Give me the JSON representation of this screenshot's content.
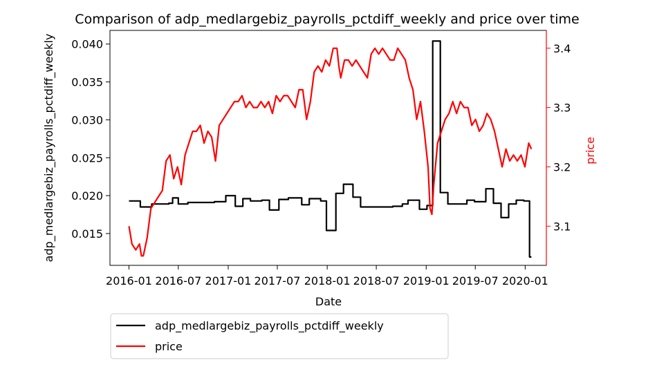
{
  "chart_data": {
    "type": "line",
    "title": "Comparison of adp_medlargebiz_payrolls_pctdiff_weekly and price over time",
    "xlabel": "Date",
    "ylabel_left": "adp_medlargebiz_payrolls_pctdiff_weekly",
    "ylabel_right": "price",
    "x_ticks": [
      "2016-01",
      "2016-07",
      "2017-01",
      "2017-07",
      "2018-01",
      "2018-07",
      "2019-01",
      "2019-07",
      "2020-01"
    ],
    "y_left_ticks": [
      "0.015",
      "0.020",
      "0.025",
      "0.030",
      "0.035",
      "0.040"
    ],
    "y_right_ticks": [
      "3.1",
      "3.2",
      "3.3",
      "3.4"
    ],
    "y_left_range": [
      0.0108,
      0.0418
    ],
    "y_right_range": [
      3.034,
      3.43
    ],
    "x_range": [
      "2015-10-23",
      "2020-03-19"
    ],
    "grid": false,
    "legend_position": "below",
    "series": [
      {
        "name": "adp_medlargebiz_payrolls_pctdiff_weekly",
        "axis": "left",
        "color": "#000000",
        "step": true,
        "points": [
          [
            "2016-01-01",
            0.0193
          ],
          [
            "2016-02-12",
            0.0185
          ],
          [
            "2016-03-25",
            0.0189
          ],
          [
            "2016-05-27",
            0.019
          ],
          [
            "2016-06-10",
            0.0197
          ],
          [
            "2016-07-01",
            0.0189
          ],
          [
            "2016-08-05",
            0.0191
          ],
          [
            "2016-11-11",
            0.0192
          ],
          [
            "2016-12-23",
            0.02
          ],
          [
            "2017-01-27",
            0.0186
          ],
          [
            "2017-02-24",
            0.0196
          ],
          [
            "2017-03-24",
            0.0193
          ],
          [
            "2017-05-05",
            0.0194
          ],
          [
            "2017-06-02",
            0.0181
          ],
          [
            "2017-07-07",
            0.0195
          ],
          [
            "2017-08-11",
            0.0197
          ],
          [
            "2017-09-29",
            0.0188
          ],
          [
            "2017-10-27",
            0.0196
          ],
          [
            "2017-12-08",
            0.0193
          ],
          [
            "2017-12-29",
            0.0154
          ],
          [
            "2018-02-02",
            0.0203
          ],
          [
            "2018-03-02",
            0.0215
          ],
          [
            "2018-04-06",
            0.0198
          ],
          [
            "2018-05-04",
            0.0185
          ],
          [
            "2018-08-31",
            0.0186
          ],
          [
            "2018-10-05",
            0.0189
          ],
          [
            "2018-10-26",
            0.0194
          ],
          [
            "2018-12-07",
            0.0182
          ],
          [
            "2019-01-04",
            0.0187
          ],
          [
            "2019-01-25",
            0.0404
          ],
          [
            "2019-02-22",
            0.0204
          ],
          [
            "2019-03-22",
            0.0189
          ],
          [
            "2019-05-31",
            0.0194
          ],
          [
            "2019-06-28",
            0.0192
          ],
          [
            "2019-08-09",
            0.0209
          ],
          [
            "2019-09-06",
            0.019
          ],
          [
            "2019-10-04",
            0.0171
          ],
          [
            "2019-11-01",
            0.0189
          ],
          [
            "2019-11-29",
            0.0194
          ],
          [
            "2019-12-27",
            0.0193
          ],
          [
            "2020-01-17",
            0.0119
          ],
          [
            "2020-01-24",
            0.0119
          ]
        ]
      },
      {
        "name": "price",
        "axis": "right",
        "color": "#ff0000",
        "step": false,
        "points": [
          [
            "2016-01-01",
            3.1
          ],
          [
            "2016-01-12",
            3.07
          ],
          [
            "2016-01-26",
            3.06
          ],
          [
            "2016-02-09",
            3.07
          ],
          [
            "2016-02-16",
            3.05
          ],
          [
            "2016-02-23",
            3.05
          ],
          [
            "2016-03-08",
            3.08
          ],
          [
            "2016-03-22",
            3.13
          ],
          [
            "2016-04-05",
            3.14
          ],
          [
            "2016-04-19",
            3.15
          ],
          [
            "2016-05-03",
            3.16
          ],
          [
            "2016-05-17",
            3.21
          ],
          [
            "2016-05-31",
            3.22
          ],
          [
            "2016-06-14",
            3.18
          ],
          [
            "2016-06-28",
            3.2
          ],
          [
            "2016-07-12",
            3.17
          ],
          [
            "2016-07-26",
            3.22
          ],
          [
            "2016-08-09",
            3.24
          ],
          [
            "2016-08-23",
            3.26
          ],
          [
            "2016-09-06",
            3.26
          ],
          [
            "2016-09-20",
            3.27
          ],
          [
            "2016-10-04",
            3.24
          ],
          [
            "2016-10-18",
            3.26
          ],
          [
            "2016-11-01",
            3.25
          ],
          [
            "2016-11-15",
            3.21
          ],
          [
            "2016-11-29",
            3.27
          ],
          [
            "2016-12-13",
            3.28
          ],
          [
            "2016-12-27",
            3.29
          ],
          [
            "2017-01-10",
            3.3
          ],
          [
            "2017-01-24",
            3.31
          ],
          [
            "2017-02-07",
            3.31
          ],
          [
            "2017-02-21",
            3.32
          ],
          [
            "2017-03-07",
            3.3
          ],
          [
            "2017-03-21",
            3.31
          ],
          [
            "2017-04-04",
            3.3
          ],
          [
            "2017-04-18",
            3.3
          ],
          [
            "2017-05-02",
            3.31
          ],
          [
            "2017-05-16",
            3.3
          ],
          [
            "2017-05-30",
            3.31
          ],
          [
            "2017-06-13",
            3.29
          ],
          [
            "2017-06-27",
            3.32
          ],
          [
            "2017-07-11",
            3.31
          ],
          [
            "2017-07-25",
            3.32
          ],
          [
            "2017-08-08",
            3.32
          ],
          [
            "2017-08-22",
            3.31
          ],
          [
            "2017-09-05",
            3.3
          ],
          [
            "2017-09-19",
            3.33
          ],
          [
            "2017-10-03",
            3.33
          ],
          [
            "2017-10-17",
            3.28
          ],
          [
            "2017-10-31",
            3.31
          ],
          [
            "2017-11-14",
            3.36
          ],
          [
            "2017-11-28",
            3.37
          ],
          [
            "2017-12-12",
            3.36
          ],
          [
            "2017-12-26",
            3.38
          ],
          [
            "2018-01-09",
            3.37
          ],
          [
            "2018-01-23",
            3.4
          ],
          [
            "2018-02-06",
            3.4
          ],
          [
            "2018-02-13",
            3.37
          ],
          [
            "2018-02-20",
            3.35
          ],
          [
            "2018-03-06",
            3.38
          ],
          [
            "2018-03-20",
            3.38
          ],
          [
            "2018-04-03",
            3.37
          ],
          [
            "2018-04-17",
            3.38
          ],
          [
            "2018-05-01",
            3.37
          ],
          [
            "2018-05-15",
            3.36
          ],
          [
            "2018-05-29",
            3.35
          ],
          [
            "2018-06-12",
            3.39
          ],
          [
            "2018-06-26",
            3.4
          ],
          [
            "2018-07-10",
            3.39
          ],
          [
            "2018-07-24",
            3.4
          ],
          [
            "2018-08-07",
            3.39
          ],
          [
            "2018-08-21",
            3.38
          ],
          [
            "2018-09-04",
            3.38
          ],
          [
            "2018-09-18",
            3.4
          ],
          [
            "2018-10-02",
            3.39
          ],
          [
            "2018-10-16",
            3.38
          ],
          [
            "2018-10-30",
            3.35
          ],
          [
            "2018-11-13",
            3.33
          ],
          [
            "2018-11-27",
            3.28
          ],
          [
            "2018-12-11",
            3.31
          ],
          [
            "2018-12-25",
            3.26
          ],
          [
            "2019-01-08",
            3.2
          ],
          [
            "2019-01-15",
            3.13
          ],
          [
            "2019-01-22",
            3.12
          ],
          [
            "2019-01-29",
            3.17
          ],
          [
            "2019-02-12",
            3.24
          ],
          [
            "2019-02-26",
            3.26
          ],
          [
            "2019-03-12",
            3.28
          ],
          [
            "2019-03-26",
            3.29
          ],
          [
            "2019-04-09",
            3.31
          ],
          [
            "2019-04-23",
            3.29
          ],
          [
            "2019-05-07",
            3.31
          ],
          [
            "2019-05-21",
            3.3
          ],
          [
            "2019-06-04",
            3.3
          ],
          [
            "2019-06-18",
            3.27
          ],
          [
            "2019-07-02",
            3.28
          ],
          [
            "2019-07-16",
            3.26
          ],
          [
            "2019-07-30",
            3.27
          ],
          [
            "2019-08-13",
            3.29
          ],
          [
            "2019-08-27",
            3.28
          ],
          [
            "2019-09-10",
            3.26
          ],
          [
            "2019-09-24",
            3.23
          ],
          [
            "2019-10-08",
            3.2
          ],
          [
            "2019-10-22",
            3.23
          ],
          [
            "2019-11-05",
            3.21
          ],
          [
            "2019-11-19",
            3.22
          ],
          [
            "2019-12-03",
            3.21
          ],
          [
            "2019-12-17",
            3.22
          ],
          [
            "2019-12-31",
            3.2
          ],
          [
            "2020-01-14",
            3.24
          ],
          [
            "2020-01-24",
            3.23
          ]
        ]
      }
    ]
  }
}
